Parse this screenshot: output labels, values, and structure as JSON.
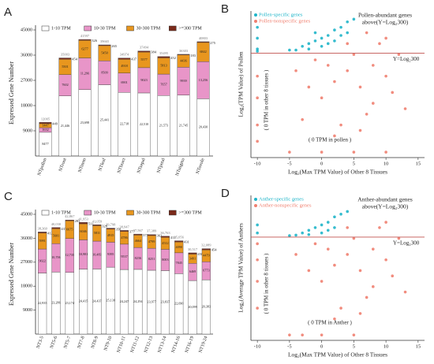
{
  "chart_data": [
    {
      "type": "bar",
      "panel_label": "A",
      "ylabel": "Expressed Gene Number",
      "categories": [
        "NTpollen",
        "NTroot",
        "NTstem",
        "NTleaf",
        "NTbract",
        "NTsepal",
        "NTpetal",
        "NTstigma",
        "NTovule"
      ],
      "series": [
        {
          "name": "1-10 TPM",
          "color": "#ffffff",
          "values": [
            8477,
            21446,
            23698,
            25441,
            22718,
            22510,
            21573,
            21745,
            20430
          ],
          "value_labels": [
            "8477",
            "21,446",
            "23,698",
            "25,441",
            "22,718",
            "22,510",
            "21,573",
            "21,745",
            "20,430"
          ]
        },
        {
          "name": "10-30 TPM",
          "color": "#e895c8",
          "values": [
            1632,
            7602,
            11296,
            8509,
            6901,
            9023,
            7657,
            9939,
            13256
          ],
          "value_labels": [
            "1632",
            "7602",
            "11,296",
            "8509",
            "6901",
            "9023",
            "7657",
            "9939",
            "13,256"
          ]
        },
        {
          "name": "30-300 TPM",
          "color": "#e8961e",
          "values": [
            1447,
            5501,
            6277,
            5450,
            4918,
            5577,
            5813,
            4436,
            6842
          ]
        },
        {
          "name": ">=300 TPM",
          "color": "#7a2a1a",
          "values": [
            449,
            454,
            326,
            265,
            437,
            384,
            452,
            183,
            275
          ]
        }
      ],
      "totals": [
        "12005",
        "35003",
        "41597",
        "39665",
        "34974",
        "37494",
        "35495",
        "36303",
        "40803"
      ],
      "ylim": [
        0,
        45000
      ],
      "yticks": [
        9000,
        18000,
        27000,
        36000,
        45000
      ]
    },
    {
      "type": "scatter",
      "panel_label": "B",
      "xlabel": "Log₂(Max TPM Value) of Other 8 Tissues",
      "ylabel": "Log₂(TPM Value) of Pollen",
      "series": [
        {
          "name": "Pollen-specific genes",
          "color": "#1fb5c9",
          "x": [
            -4,
            -3,
            -2,
            -1,
            0,
            1,
            2,
            3,
            4,
            5,
            -2,
            0,
            2,
            -10,
            -10,
            -10,
            -10,
            -5,
            1,
            3,
            -1,
            4
          ],
          "y": [
            8.8,
            9.5,
            10,
            10.5,
            11,
            11.5,
            12.5,
            13,
            14,
            14.5,
            9,
            9.5,
            10.5,
            9,
            11,
            13,
            8.6,
            8.8,
            10,
            11.5,
            12,
            12
          ]
        },
        {
          "name": "Pollen-nonspecific genes",
          "color": "#f08070",
          "x": [
            -10,
            -10,
            -10,
            -10,
            -5,
            0,
            5,
            10,
            0,
            2,
            4,
            6,
            8,
            10,
            7,
            3,
            12,
            9,
            5,
            -2,
            1,
            11,
            13,
            -3,
            -4,
            6,
            8,
            2,
            -1,
            4,
            10,
            7
          ],
          "y": [
            0,
            -5,
            4,
            -8,
            -10,
            -10,
            -10,
            -10,
            0,
            3,
            5,
            2,
            6,
            4,
            -3,
            -5,
            8,
            10,
            8,
            2,
            6,
            1,
            -2,
            -4,
            5,
            -6,
            -1,
            -7,
            7,
            10,
            11,
            12
          ]
        }
      ],
      "annotation_top": [
        "Pollen-abundant genes",
        "above(Y=Log₂300)"
      ],
      "line_label": "Y=Log₂300",
      "left_label": "( 0 TPM in other 8 tissues )",
      "bottom_label": "( 0 TPM in pollen )",
      "hline": 8.23,
      "xlim": [
        -11,
        16
      ],
      "ylim": [
        -11,
        16
      ],
      "xticks": [
        -10,
        -5,
        0,
        5,
        10,
        15
      ]
    },
    {
      "type": "bar",
      "panel_label": "C",
      "ylabel": "Expressed Gene Number",
      "categories": [
        "NT3-5",
        "NT5-6",
        "NT5-7",
        "NT7-8",
        "NT8-9",
        "NT9-10",
        "NT10-11",
        "NT11-12",
        "NT12-13",
        "NT13-14",
        "NT14-16",
        "NT16-19",
        "NT19-24"
      ],
      "series": [
        {
          "name": "1-10 TPM",
          "color": "#ffffff",
          "values": [
            22935,
            23286,
            23174,
            24415,
            24437,
            25130,
            24247,
            24294,
            23977,
            23837,
            22690,
            20099,
            20383
          ],
          "value_labels": [
            "22,935",
            "23,286",
            "23,174",
            "24,415",
            "24,437",
            "25,130",
            "24,247",
            "24,294",
            "23,977",
            "23,837",
            "22,690",
            "20,099",
            "20,383"
          ]
        },
        {
          "name": "10-30 TPM",
          "color": "#e895c8",
          "values": [
            9022,
            10706,
            12735,
            10981,
            10483,
            9395,
            9537,
            8236,
            8251,
            8003,
            7845,
            6469,
            6773
          ],
          "value_labels": [
            "9022",
            "10,706",
            "12,735",
            "10,981",
            "10,483",
            "9395",
            "9537",
            "8236",
            "8251",
            "8003",
            "7845",
            "6469",
            "6773"
          ]
        },
        {
          "name": "30-300 TPM",
          "color": "#e8961e",
          "values": [
            5991,
            5601,
            6675,
            6046,
            5811,
            4915,
            4786,
            4664,
            4799,
            4512,
            4090,
            3491,
            4479
          ]
        },
        {
          "name": ">=300 TPM",
          "color": "#7a2a1a",
          "values": [
            412,
            437,
            283,
            511,
            328,
            358,
            377,
            373,
            362,
            411,
            431,
            458,
            454
          ]
        }
      ],
      "totals": [
        "38,360",
        "40,030",
        "42,867",
        "41,953",
        "41,059",
        "39,798",
        "38,947",
        "37,567",
        "37,389",
        "36,763",
        "35,056",
        "30,517",
        "32,089"
      ],
      "ylim": [
        0,
        45000
      ],
      "yticks": [
        9000,
        18000,
        27000,
        36000,
        45000
      ]
    },
    {
      "type": "scatter",
      "panel_label": "D",
      "xlabel": "Log₂(Max TPM Value) of Other 8 Tissues",
      "ylabel": "Log₂(Average TPM Value) of Anthers",
      "series": [
        {
          "name": "Anther-specific genes",
          "color": "#1fb5c9",
          "x": [
            -4,
            -3,
            -2,
            -1,
            0,
            1,
            2,
            3,
            4,
            0,
            2,
            -10,
            -10,
            -2,
            1,
            -5
          ],
          "y": [
            8.6,
            9,
            9.5,
            10,
            10.5,
            11,
            12,
            12.5,
            13,
            9,
            10,
            9,
            10.5,
            8.7,
            9.5,
            8.5
          ]
        },
        {
          "name": "Anther-nonspecific genes",
          "color": "#f08070",
          "x": [
            -10,
            -10,
            -10,
            -10,
            -5,
            0,
            5,
            -3,
            0,
            2,
            4,
            6,
            8,
            10,
            7,
            3,
            12,
            9,
            5,
            -2,
            1,
            11,
            13,
            -4,
            6,
            8,
            2,
            -1,
            4,
            10
          ],
          "y": [
            0,
            -5,
            4,
            7,
            -10,
            -10,
            -10,
            -10,
            0,
            3,
            5,
            2,
            6,
            4,
            -3,
            -5,
            8,
            10,
            8,
            2,
            6,
            1,
            -2,
            5,
            -6,
            -1,
            -7,
            7,
            10,
            11
          ]
        }
      ],
      "annotation_top": [
        "Anther-abundant genes",
        "above(Y=Log₂300)"
      ],
      "line_label": "Y=Log₂300",
      "left_label": "( 0 TPM in other 8 tissues )",
      "bottom_label": "( 0 TPM in Anther )",
      "hline": 8.23,
      "xlim": [
        -11,
        16
      ],
      "ylim": [
        -11,
        16
      ],
      "xticks": [
        -10,
        -5,
        0,
        5,
        10,
        15
      ]
    }
  ]
}
